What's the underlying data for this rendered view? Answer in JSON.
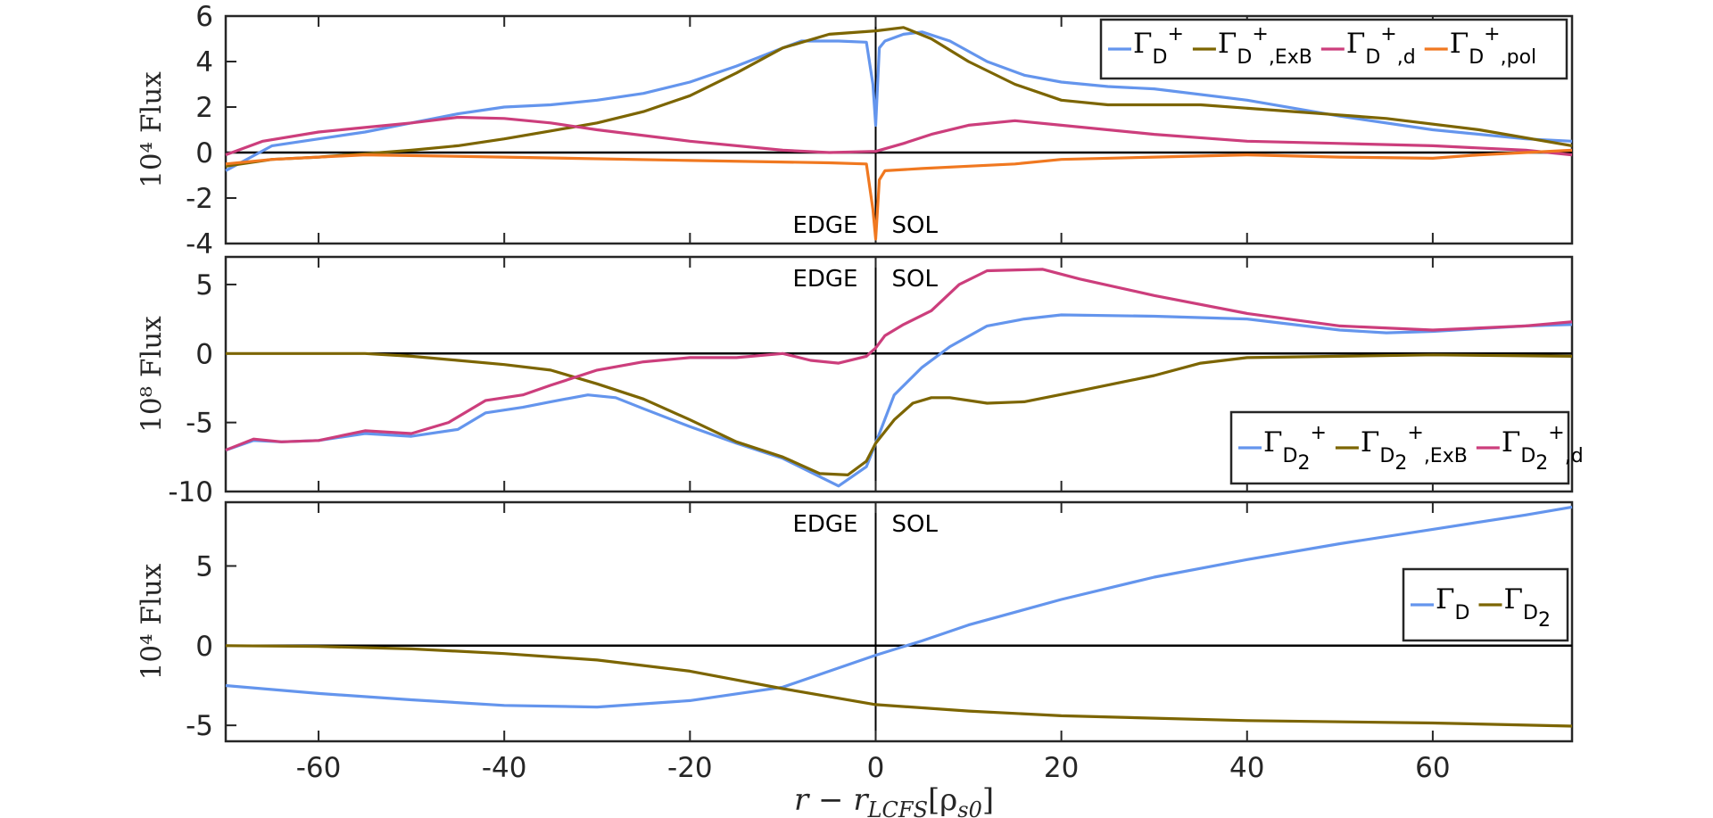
{
  "figure": {
    "xlabel": "r − r",
    "xlabel_sub": "LCFS",
    "xlabel_bracket": "[ρ",
    "xlabel_bracket_sub": "s0",
    "xlabel_close": "]"
  },
  "chart_data": [
    {
      "type": "line",
      "ylabel": "10⁴ Flux",
      "xlim": [
        -70,
        75
      ],
      "ylim": [
        -4,
        6
      ],
      "xticks": [
        -60,
        -40,
        -20,
        0,
        20,
        40,
        60
      ],
      "yticks": [
        6,
        4,
        2,
        0,
        -2,
        -4
      ],
      "legend_position": "top-right",
      "annotations": [
        "EDGE",
        "SOL"
      ],
      "series": [
        {
          "name": "Γ_D+",
          "label": "Γ",
          "sub": "D",
          "sup": "+",
          "suffix": "",
          "color": "#6495ed",
          "points": [
            [
              -70,
              -0.8
            ],
            [
              -65,
              0.3
            ],
            [
              -60,
              0.6
            ],
            [
              -55,
              0.9
            ],
            [
              -50,
              1.3
            ],
            [
              -45,
              1.7
            ],
            [
              -40,
              2.0
            ],
            [
              -35,
              2.1
            ],
            [
              -30,
              2.3
            ],
            [
              -25,
              2.6
            ],
            [
              -20,
              3.1
            ],
            [
              -15,
              3.8
            ],
            [
              -10,
              4.6
            ],
            [
              -8,
              4.9
            ],
            [
              -4,
              4.9
            ],
            [
              -1,
              4.85
            ],
            [
              -0.3,
              3.0
            ],
            [
              0,
              1.2
            ],
            [
              0.4,
              4.6
            ],
            [
              1,
              4.9
            ],
            [
              3,
              5.2
            ],
            [
              5,
              5.3
            ],
            [
              8,
              4.9
            ],
            [
              12,
              4.0
            ],
            [
              16,
              3.4
            ],
            [
              20,
              3.1
            ],
            [
              25,
              2.9
            ],
            [
              30,
              2.8
            ],
            [
              40,
              2.3
            ],
            [
              50,
              1.6
            ],
            [
              60,
              1.0
            ],
            [
              70,
              0.6
            ],
            [
              75,
              0.5
            ]
          ]
        },
        {
          "name": "Γ_D+,ExB",
          "label": "Γ",
          "sub": "D",
          "sup": "+",
          "suffix": ",ExB",
          "color": "#7c6500",
          "points": [
            [
              -70,
              -0.6
            ],
            [
              -65,
              -0.3
            ],
            [
              -60,
              -0.2
            ],
            [
              -55,
              -0.05
            ],
            [
              -50,
              0.1
            ],
            [
              -45,
              0.3
            ],
            [
              -40,
              0.6
            ],
            [
              -35,
              0.95
            ],
            [
              -30,
              1.3
            ],
            [
              -25,
              1.8
            ],
            [
              -20,
              2.5
            ],
            [
              -15,
              3.5
            ],
            [
              -10,
              4.6
            ],
            [
              -5,
              5.2
            ],
            [
              0,
              5.35
            ],
            [
              3,
              5.5
            ],
            [
              6,
              5.0
            ],
            [
              10,
              4.0
            ],
            [
              15,
              3.0
            ],
            [
              20,
              2.3
            ],
            [
              25,
              2.1
            ],
            [
              35,
              2.1
            ],
            [
              45,
              1.8
            ],
            [
              55,
              1.5
            ],
            [
              65,
              1.0
            ],
            [
              75,
              0.3
            ]
          ]
        },
        {
          "name": "Γ_D+,d",
          "label": "Γ",
          "sub": "D",
          "sup": "+",
          "suffix": ",d",
          "color": "#cc3e7c",
          "points": [
            [
              -70,
              -0.1
            ],
            [
              -66,
              0.5
            ],
            [
              -60,
              0.9
            ],
            [
              -55,
              1.1
            ],
            [
              -50,
              1.3
            ],
            [
              -45,
              1.55
            ],
            [
              -40,
              1.5
            ],
            [
              -35,
              1.3
            ],
            [
              -30,
              1.0
            ],
            [
              -20,
              0.5
            ],
            [
              -10,
              0.1
            ],
            [
              -5,
              0.0
            ],
            [
              0,
              0.05
            ],
            [
              3,
              0.4
            ],
            [
              6,
              0.8
            ],
            [
              10,
              1.2
            ],
            [
              15,
              1.4
            ],
            [
              20,
              1.2
            ],
            [
              30,
              0.8
            ],
            [
              40,
              0.5
            ],
            [
              50,
              0.4
            ],
            [
              60,
              0.3
            ],
            [
              70,
              0.1
            ],
            [
              75,
              -0.1
            ]
          ]
        },
        {
          "name": "Γ_D+,pol",
          "label": "Γ",
          "sub": "D",
          "sup": "+",
          "suffix": ",pol",
          "color": "#f07820",
          "points": [
            [
              -70,
              -0.5
            ],
            [
              -65,
              -0.3
            ],
            [
              -55,
              -0.1
            ],
            [
              -40,
              -0.2
            ],
            [
              -20,
              -0.35
            ],
            [
              -5,
              -0.45
            ],
            [
              -1,
              -0.5
            ],
            [
              -0.3,
              -2.5
            ],
            [
              0,
              -3.8
            ],
            [
              0.4,
              -1.2
            ],
            [
              1,
              -0.8
            ],
            [
              5,
              -0.7
            ],
            [
              10,
              -0.6
            ],
            [
              15,
              -0.5
            ],
            [
              20,
              -0.3
            ],
            [
              30,
              -0.2
            ],
            [
              40,
              -0.1
            ],
            [
              50,
              -0.2
            ],
            [
              60,
              -0.25
            ],
            [
              65,
              -0.1
            ],
            [
              70,
              0.0
            ],
            [
              75,
              0.1
            ]
          ]
        }
      ]
    },
    {
      "type": "line",
      "ylabel": "10⁸ Flux",
      "xlim": [
        -70,
        75
      ],
      "ylim": [
        -10,
        7
      ],
      "xticks": [
        -60,
        -40,
        -20,
        0,
        20,
        40,
        60
      ],
      "yticks": [
        5,
        0,
        -5,
        -10
      ],
      "legend_position": "bottom-right",
      "annotations": [
        "EDGE",
        "SOL"
      ],
      "series": [
        {
          "name": "Γ_D2+",
          "label": "Γ",
          "sub": "D",
          "subsub": "2",
          "sup": "+",
          "suffix": "",
          "color": "#6495ed",
          "points": [
            [
              -70,
              -7.0
            ],
            [
              -67,
              -6.3
            ],
            [
              -64,
              -6.4
            ],
            [
              -60,
              -6.3
            ],
            [
              -55,
              -5.8
            ],
            [
              -50,
              -6.0
            ],
            [
              -45,
              -5.5
            ],
            [
              -42,
              -4.3
            ],
            [
              -38,
              -3.9
            ],
            [
              -35,
              -3.5
            ],
            [
              -31,
              -3.0
            ],
            [
              -28,
              -3.2
            ],
            [
              -25,
              -4.0
            ],
            [
              -20,
              -5.3
            ],
            [
              -15,
              -6.5
            ],
            [
              -10,
              -7.6
            ],
            [
              -7,
              -8.6
            ],
            [
              -4,
              -9.6
            ],
            [
              -1,
              -8.2
            ],
            [
              0,
              -6.5
            ],
            [
              2,
              -3.0
            ],
            [
              5,
              -1.0
            ],
            [
              8,
              0.5
            ],
            [
              12,
              2.0
            ],
            [
              16,
              2.5
            ],
            [
              20,
              2.8
            ],
            [
              30,
              2.7
            ],
            [
              40,
              2.5
            ],
            [
              50,
              1.7
            ],
            [
              55,
              1.5
            ],
            [
              60,
              1.6
            ],
            [
              65,
              1.8
            ],
            [
              70,
              2.0
            ],
            [
              75,
              2.1
            ]
          ]
        },
        {
          "name": "Γ_D2+,ExB",
          "label": "Γ",
          "sub": "D",
          "subsub": "2",
          "sup": "+",
          "suffix": ",ExB",
          "color": "#7c6500",
          "points": [
            [
              -70,
              0.0
            ],
            [
              -55,
              0.0
            ],
            [
              -50,
              -0.2
            ],
            [
              -45,
              -0.5
            ],
            [
              -40,
              -0.8
            ],
            [
              -35,
              -1.2
            ],
            [
              -30,
              -2.2
            ],
            [
              -25,
              -3.3
            ],
            [
              -20,
              -4.8
            ],
            [
              -15,
              -6.4
            ],
            [
              -10,
              -7.5
            ],
            [
              -6,
              -8.7
            ],
            [
              -3,
              -8.8
            ],
            [
              -1,
              -7.8
            ],
            [
              0,
              -6.5
            ],
            [
              2,
              -4.8
            ],
            [
              4,
              -3.6
            ],
            [
              6,
              -3.2
            ],
            [
              8,
              -3.2
            ],
            [
              12,
              -3.6
            ],
            [
              16,
              -3.5
            ],
            [
              22,
              -2.7
            ],
            [
              30,
              -1.6
            ],
            [
              35,
              -0.7
            ],
            [
              40,
              -0.3
            ],
            [
              50,
              -0.2
            ],
            [
              60,
              -0.1
            ],
            [
              75,
              -0.2
            ]
          ]
        },
        {
          "name": "Γ_D2+,d",
          "label": "Γ",
          "sub": "D",
          "subsub": "2",
          "sup": "+",
          "suffix": ",d",
          "color": "#cc3e7c",
          "points": [
            [
              -70,
              -7.0
            ],
            [
              -67,
              -6.2
            ],
            [
              -64,
              -6.4
            ],
            [
              -60,
              -6.3
            ],
            [
              -55,
              -5.6
            ],
            [
              -50,
              -5.8
            ],
            [
              -46,
              -5.0
            ],
            [
              -42,
              -3.4
            ],
            [
              -38,
              -3.0
            ],
            [
              -35,
              -2.3
            ],
            [
              -30,
              -1.2
            ],
            [
              -25,
              -0.6
            ],
            [
              -20,
              -0.3
            ],
            [
              -15,
              -0.3
            ],
            [
              -10,
              0.0
            ],
            [
              -7,
              -0.5
            ],
            [
              -4,
              -0.7
            ],
            [
              -1,
              -0.2
            ],
            [
              0,
              0.4
            ],
            [
              1,
              1.3
            ],
            [
              3,
              2.1
            ],
            [
              6,
              3.1
            ],
            [
              9,
              5.0
            ],
            [
              12,
              6.0
            ],
            [
              18,
              6.1
            ],
            [
              22,
              5.4
            ],
            [
              30,
              4.2
            ],
            [
              40,
              2.9
            ],
            [
              50,
              2.0
            ],
            [
              60,
              1.7
            ],
            [
              70,
              2.0
            ],
            [
              75,
              2.3
            ]
          ]
        }
      ]
    },
    {
      "type": "line",
      "ylabel": "10⁴ Flux",
      "xlim": [
        -70,
        75
      ],
      "ylim": [
        -6,
        9
      ],
      "xticks": [
        -60,
        -40,
        -20,
        0,
        20,
        40,
        60
      ],
      "yticks": [
        5,
        0,
        -5
      ],
      "legend_position": "right",
      "annotations": [
        "EDGE",
        "SOL"
      ],
      "series": [
        {
          "name": "Γ_D",
          "label": "Γ",
          "sub": "D",
          "sup": "",
          "suffix": "",
          "color": "#6495ed",
          "points": [
            [
              -70,
              -2.5
            ],
            [
              -60,
              -3.0
            ],
            [
              -50,
              -3.4
            ],
            [
              -40,
              -3.75
            ],
            [
              -30,
              -3.85
            ],
            [
              -20,
              -3.45
            ],
            [
              -10,
              -2.6
            ],
            [
              0,
              -0.6
            ],
            [
              5,
              0.3
            ],
            [
              10,
              1.3
            ],
            [
              20,
              2.9
            ],
            [
              30,
              4.3
            ],
            [
              40,
              5.4
            ],
            [
              50,
              6.4
            ],
            [
              60,
              7.3
            ],
            [
              70,
              8.2
            ],
            [
              75,
              8.7
            ]
          ]
        },
        {
          "name": "Γ_D2",
          "label": "Γ",
          "sub": "D",
          "subsub": "2",
          "sup": "",
          "suffix": "",
          "color": "#7c6500",
          "points": [
            [
              -70,
              0.0
            ],
            [
              -60,
              -0.05
            ],
            [
              -50,
              -0.2
            ],
            [
              -40,
              -0.5
            ],
            [
              -30,
              -0.9
            ],
            [
              -20,
              -1.6
            ],
            [
              -10,
              -2.7
            ],
            [
              0,
              -3.7
            ],
            [
              10,
              -4.1
            ],
            [
              20,
              -4.4
            ],
            [
              40,
              -4.7
            ],
            [
              60,
              -4.85
            ],
            [
              75,
              -5.05
            ]
          ]
        }
      ]
    }
  ]
}
